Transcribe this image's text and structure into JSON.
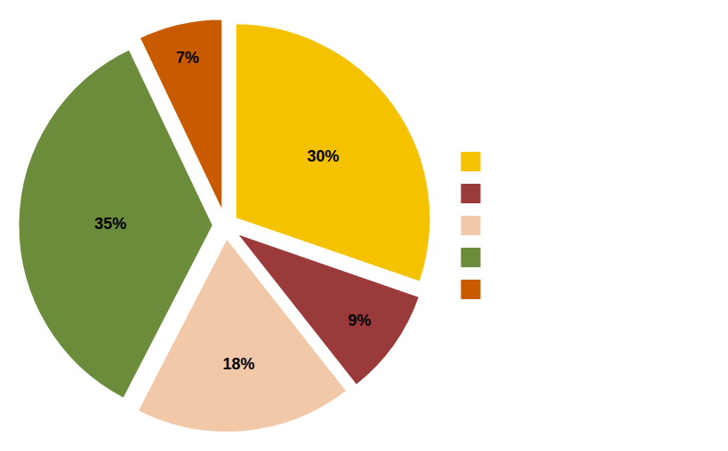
{
  "chart_data": {
    "type": "pie",
    "values": [
      30,
      9,
      18,
      35,
      7
    ],
    "value_labels": [
      "30%",
      "9%",
      "18%",
      "35%",
      "7%"
    ],
    "data_labels": true,
    "colors": [
      "#F5C200",
      "#9B3A3A",
      "#F2C9A8",
      "#6B8C3A",
      "#C85A00"
    ],
    "legend": "right"
  }
}
